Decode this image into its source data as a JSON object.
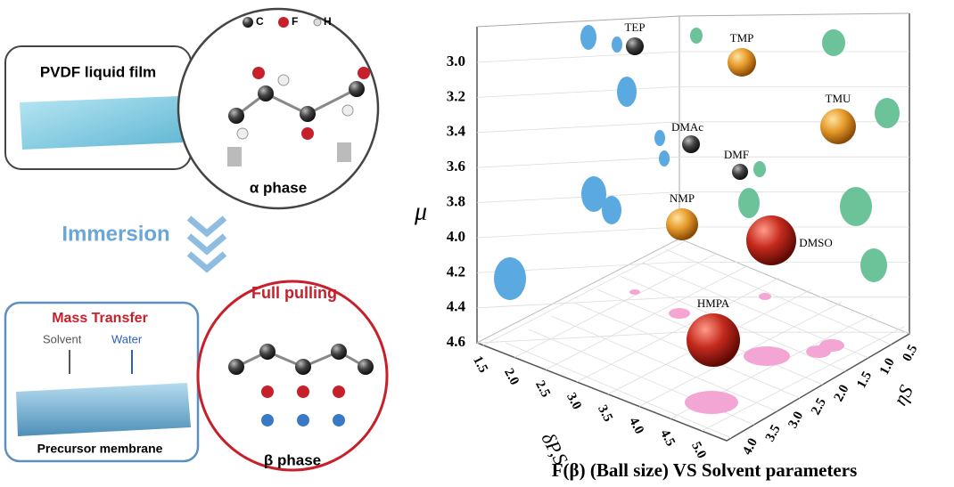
{
  "left": {
    "film_title": "PVDF liquid film",
    "atom_legend": [
      "C",
      "F",
      "H"
    ],
    "alpha_label": "α phase",
    "immersion": "Immersion",
    "mass_transfer": "Mass Transfer",
    "solvent": "Solvent",
    "water": "Water",
    "precursor": "Precursor membrane",
    "full_pulling": "Full pulling",
    "beta_label": "β phase"
  },
  "plot": {
    "z_label": "μ",
    "x_label": "δP,S",
    "y_label": "ηS",
    "z_ticks": [
      "3.0",
      "3.2",
      "3.4",
      "3.6",
      "3.8",
      "4.0",
      "4.2",
      "4.4",
      "4.6"
    ],
    "x_ticks": [
      "1.5",
      "2.0",
      "2.5",
      "3.0",
      "3.5",
      "4.0",
      "4.5",
      "5.0"
    ],
    "y_ticks": [
      "0.5",
      "1.0",
      "1.5",
      "2.0",
      "2.5",
      "3.0",
      "3.5",
      "4.0"
    ],
    "solvents": [
      "TEP",
      "TMP",
      "TMU",
      "DMAc",
      "DMF",
      "NMP",
      "DMSO",
      "HMPA"
    ],
    "caption": "F(β) (Ball size) VS Solvent parameters"
  }
}
